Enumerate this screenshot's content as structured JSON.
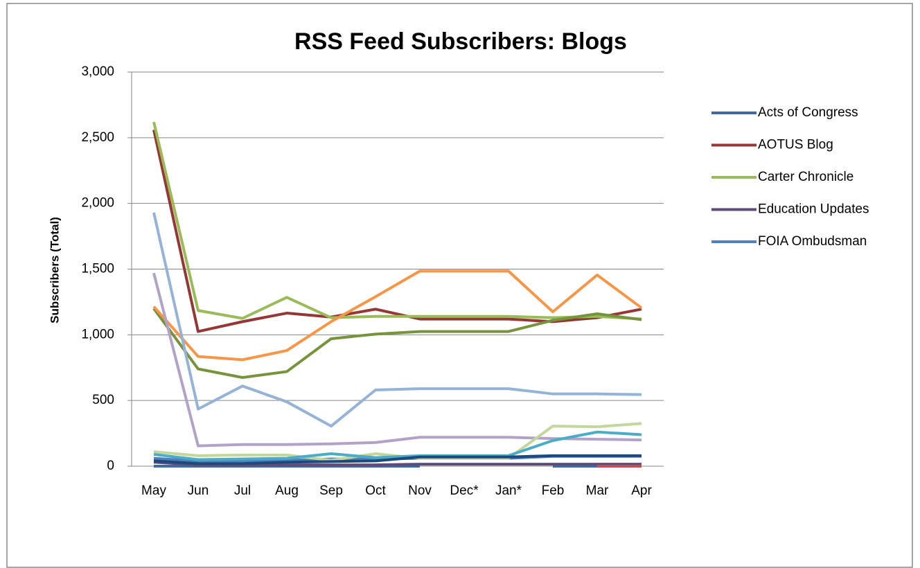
{
  "chart_data": {
    "type": "line",
    "title": "RSS Feed Subscribers: Blogs",
    "y_label": "Subscribers (Total)",
    "categories": [
      "May",
      "Jun",
      "Jul",
      "Aug",
      "Sep",
      "Oct",
      "Nov",
      "Dec*",
      "Jan*",
      "Feb",
      "Mar",
      "Apr"
    ],
    "ylim": [
      0,
      3000
    ],
    "yticks": [
      0,
      500,
      {
        "value": 1000,
        "label": "1,000"
      },
      {
        "value": 1500,
        "label": "1,500"
      },
      {
        "value": 2000,
        "label": "2,000"
      },
      {
        "value": 2500,
        "label": "2,500"
      },
      {
        "value": 3000,
        "label": "3,000"
      }
    ],
    "grid": true,
    "legend": "right",
    "series": [
      {
        "name": "Acts of Congress",
        "color": "#3d6aa3",
        "values": [
          0,
          0,
          0,
          0,
          0,
          0,
          0,
          null,
          null,
          0,
          0,
          null
        ]
      },
      {
        "name": "AOTUS Blog",
        "color": "#953735",
        "values": [
          2560,
          1025,
          1100,
          1165,
          1135,
          1195,
          1120,
          1120,
          1120,
          1100,
          1130,
          1195
        ]
      },
      {
        "name": "Carter Chronicle",
        "color": "#9bbb59",
        "values": [
          2620,
          1185,
          1125,
          1285,
          1130,
          1140,
          1140,
          1140,
          1140,
          1130,
          1140,
          1120
        ]
      },
      {
        "name": "Education Updates",
        "color": "#604a7b",
        "values": [
          30,
          10,
          10,
          10,
          10,
          10,
          15,
          15,
          15,
          15,
          15,
          15
        ]
      },
      {
        "name": "FOIA Ombudsman",
        "color": "#4f81bd",
        "values": [
          60,
          40,
          40,
          45,
          55,
          55,
          60,
          60,
          60,
          75,
          75,
          75
        ]
      },
      {
        "color": "#77933c",
        "values": [
          1200,
          740,
          675,
          720,
          970,
          1005,
          1025,
          1025,
          1025,
          1110,
          1160,
          1115
        ]
      },
      {
        "color": "#f79646",
        "values": [
          1215,
          835,
          810,
          880,
          1100,
          1290,
          1485,
          1485,
          1485,
          1175,
          1455,
          1205
        ]
      },
      {
        "color": "#95b3d7",
        "values": [
          1930,
          435,
          610,
          490,
          305,
          580,
          590,
          590,
          590,
          550,
          550,
          545
        ]
      },
      {
        "color": "#b3a2c7",
        "values": [
          1470,
          155,
          165,
          165,
          170,
          180,
          220,
          220,
          220,
          210,
          205,
          200
        ]
      },
      {
        "color": "#c3d69b",
        "values": [
          110,
          80,
          85,
          85,
          45,
          95,
          60,
          60,
          60,
          305,
          300,
          325
        ]
      },
      {
        "color": "#4bacc6",
        "values": [
          90,
          50,
          55,
          60,
          95,
          65,
          80,
          80,
          80,
          195,
          260,
          240
        ]
      },
      {
        "color": "#1f497d",
        "values": [
          40,
          20,
          20,
          30,
          35,
          40,
          70,
          70,
          70,
          80,
          80,
          80
        ]
      },
      {
        "color": "#c0504d",
        "values": [
          null,
          null,
          null,
          null,
          null,
          null,
          null,
          null,
          null,
          null,
          0,
          0
        ]
      }
    ]
  }
}
